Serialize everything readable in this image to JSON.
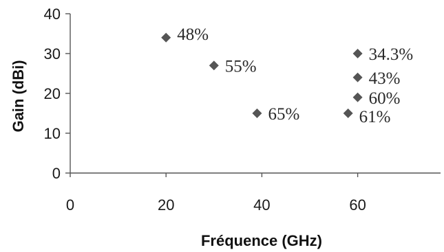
{
  "chart_data": {
    "type": "scatter",
    "title": "",
    "xlabel": "Fréquence (GHz)",
    "ylabel": "Gain (dBi)",
    "xlim": [
      0,
      78
    ],
    "ylim": [
      0,
      40
    ],
    "xticks": [
      0,
      20,
      40,
      60
    ],
    "yticks": [
      0,
      10,
      20,
      30,
      40
    ],
    "grid": false,
    "marker": "diamond",
    "marker_color": "#555555",
    "points": [
      {
        "x": 20,
        "y": 34,
        "label": "48%"
      },
      {
        "x": 30,
        "y": 27,
        "label": "55%"
      },
      {
        "x": 39,
        "y": 15,
        "label": "65%"
      },
      {
        "x": 58,
        "y": 15,
        "label": "61%"
      },
      {
        "x": 60,
        "y": 30,
        "label": "34.3%"
      },
      {
        "x": 60,
        "y": 24,
        "label": "43%"
      },
      {
        "x": 60,
        "y": 19,
        "label": "60%"
      }
    ]
  }
}
